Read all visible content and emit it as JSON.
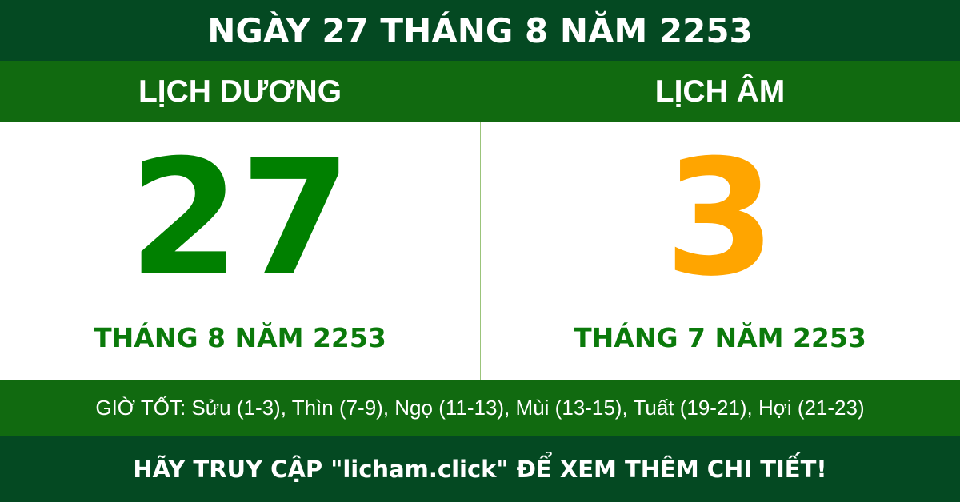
{
  "title": "NGÀY 27 THÁNG 8 NĂM 2253",
  "solar": {
    "label": "LỊCH DƯƠNG",
    "day": "27",
    "month_year": "THÁNG 8 NĂM 2253"
  },
  "lunar": {
    "label": "LỊCH ÂM",
    "day": "3",
    "month_year": "THÁNG 7 NĂM 2253"
  },
  "good_hours": "GIỜ TỐT: Sửu (1-3), Thìn (7-9), Ngọ (11-13), Mùi (13-15), Tuất (19-21), Hợi (21-23)",
  "footer": "HÃY TRUY CẬP \"licham.click\" ĐỂ XEM THÊM CHI TIẾT!",
  "colors": {
    "dark_green": "#044922",
    "green": "#116a10",
    "solar_day": "#008000",
    "lunar_day": "#ffa500"
  }
}
